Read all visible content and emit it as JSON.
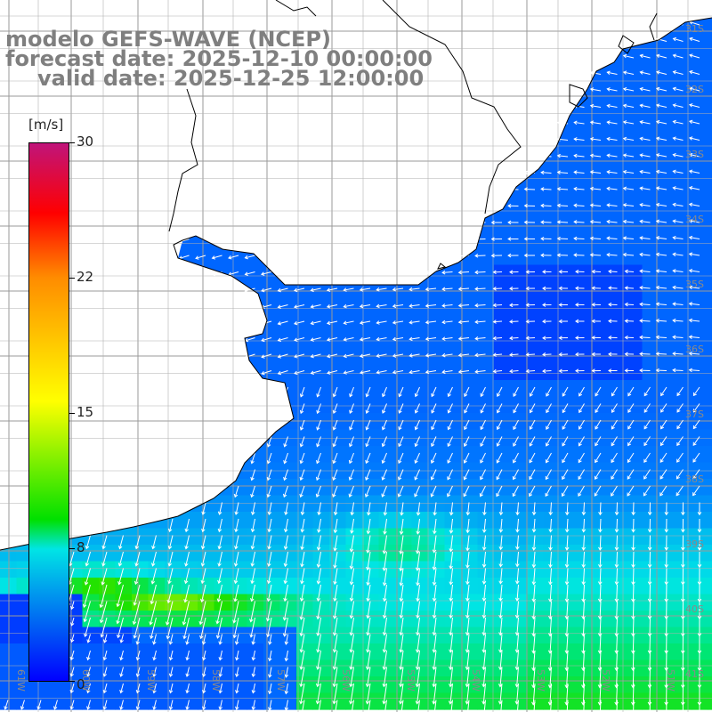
{
  "title": {
    "line1": "modelo GEFS-WAVE (NCEP)",
    "line2": "forecast date: 2025-12-10 00:00:00",
    "line3": "valid date: 2025-12-25 12:00:00"
  },
  "colorbar": {
    "unit": "[m/s]",
    "ticks": [
      "30",
      "22",
      "15",
      "8",
      "0"
    ],
    "colors": [
      "#c0147a",
      "#ff0000",
      "#ff8c00",
      "#ffff00",
      "#00e000",
      "#00e5e5",
      "#0000ff"
    ]
  },
  "map": {
    "land_color": "#ffffff",
    "grid_color": "#9a9a9a",
    "coast_color": "#000000",
    "lon_labels": [
      "61W",
      "60W",
      "59W",
      "58W",
      "57W",
      "56W",
      "55W",
      "54W",
      "53W",
      "52W",
      "51W"
    ],
    "lat_labels": [
      "31S",
      "32S",
      "33S",
      "34S",
      "35S",
      "36S",
      "37S",
      "38S",
      "39S",
      "40S",
      "41S"
    ]
  }
}
